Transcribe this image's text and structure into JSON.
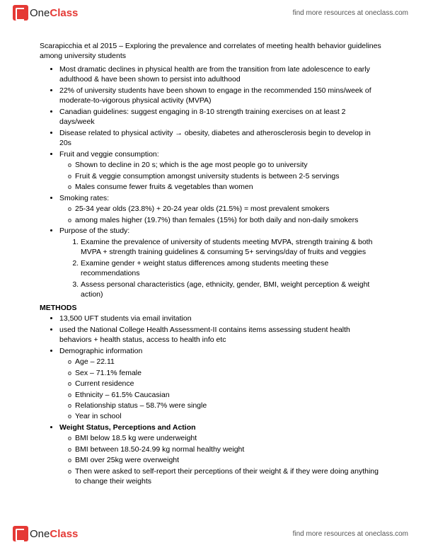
{
  "brand": {
    "one": "One",
    "class": "Class",
    "tagline": "find more resources at oneclass.com"
  },
  "title": "Scarapicchia et al 2015 – Exploring the prevalence and correlates of meeting health behavior guidelines among university students",
  "b": [
    "Most dramatic declines in physical health are from the transition from late adolescence to early adulthood & have been shown to persist into adulthood",
    "22% of university students have been shown to engage in the recommended 150 mins/week of moderate-to-vigorous physical activity (MVPA)",
    "Canadian guidelines: suggest engaging in 8-10 strength training exercises on at least 2 days/week",
    "Disease related to physical activity → obesity, diabetes and atherosclerosis begin to develop in 20s",
    "Fruit and veggie consumption:",
    "Smoking rates:",
    "Purpose of the study:"
  ],
  "fruit": [
    "Shown to decline in 20 s; which is the age most people go to university",
    "Fruit & veggie consumption amongst university students is between 2-5 servings",
    "Males consume fewer fruits & vegetables than women"
  ],
  "smoke": [
    "25-34 year olds (23.8%) + 20-24 year olds (21.5%) = most prevalent smokers",
    "among males higher (19.7%) than females (15%) for both daily and non-daily smokers"
  ],
  "purpose": [
    "Examine the prevalence of university of students meeting MVPA, strength training & both MVPA + strength training guidelines & consuming 5+ servings/day of fruits and veggies",
    "Examine gender + weight status differences among students meeting these recommendations",
    "Assess personal characteristics (age, ethnicity, gender, BMI, weight perception & weight action)"
  ],
  "methods_label": "METHODS",
  "m": [
    "13,500 UFT students via email invitation",
    "used the National College Health Assessment-II contains items assessing student health behaviors + health status, access to health info etc",
    "Demographic information"
  ],
  "demo": [
    "Age – 22.11",
    "Sex – 71.1% female",
    "Current residence",
    "Ethnicity – 61.5% Caucasian",
    "Relationship status – 58.7% were single",
    "Year in school"
  ],
  "wlabel": "Weight Status, Perceptions and Action",
  "w": [
    "BMI below 18.5 kg were underweight",
    "BMI between 18.50-24.99 kg normal healthy weight",
    "BMI over 25kg were overweight",
    "Then were asked to self-report their perceptions of their weight & if they were doing anything to change their weights"
  ]
}
